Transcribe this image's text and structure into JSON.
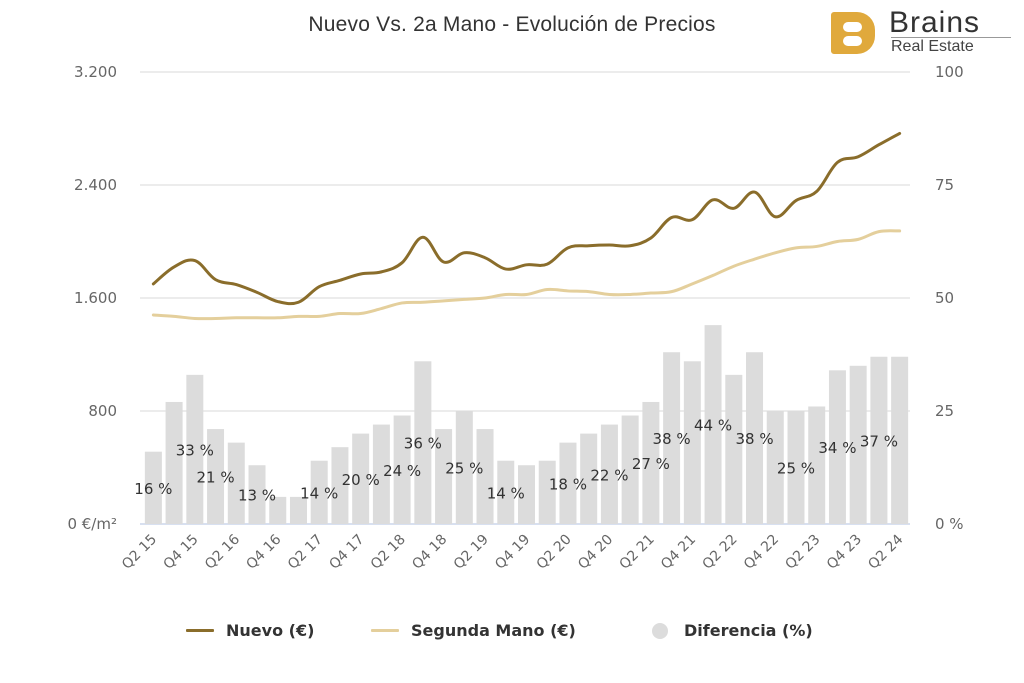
{
  "header": {
    "title": "Nuevo Vs. 2a Mano - Evolución de Precios",
    "logo": {
      "brand": "Brains",
      "subtitle": "Real Estate",
      "mark_letter": "B"
    }
  },
  "colors": {
    "nuevo": "#8a6d2b",
    "segunda": "#e4cf9c",
    "diferencia": "#dcdcdc",
    "grid": "#e6e6e6",
    "logo_accent": "#e0a93c"
  },
  "legend": {
    "items": [
      {
        "label": "Nuevo (€)",
        "icon": "line-swatch"
      },
      {
        "label": "Segunda Mano (€)",
        "icon": "line-swatch"
      },
      {
        "label": "Diferencia (%)",
        "icon": "circle-swatch"
      }
    ]
  },
  "chart_data": {
    "type": "line+bar",
    "title": "Nuevo Vs. 2a Mano - Evolución de Precios",
    "xlabel": "",
    "ylabel_left": "€/m²",
    "ylabel_right": "%",
    "y_left": {
      "range": [
        0,
        3200
      ],
      "ticks": [
        0,
        800,
        1600,
        2400,
        3200
      ],
      "tick_labels": [
        "0 €/m²",
        "800",
        "1.600",
        "2.400",
        "3.200"
      ]
    },
    "y_right": {
      "range": [
        0,
        100
      ],
      "ticks": [
        0,
        25,
        50,
        75,
        100
      ],
      "tick_labels": [
        "0 %",
        "25",
        "50",
        "75",
        "100"
      ]
    },
    "grid": true,
    "legend_position": "bottom",
    "x": [
      "Q2 15",
      "Q3 15",
      "Q4 15",
      "Q1 16",
      "Q2 16",
      "Q3 16",
      "Q4 16",
      "Q1 17",
      "Q2 17",
      "Q3 17",
      "Q4 17",
      "Q1 18",
      "Q2 18",
      "Q3 18",
      "Q4 18",
      "Q1 19",
      "Q2 19",
      "Q3 19",
      "Q4 19",
      "Q1 20",
      "Q2 20",
      "Q3 20",
      "Q4 20",
      "Q1 21",
      "Q2 21",
      "Q3 21",
      "Q4 21",
      "Q1 22",
      "Q2 22",
      "Q3 22",
      "Q4 22",
      "Q1 23",
      "Q2 23",
      "Q3 23",
      "Q4 23",
      "Q1 24",
      "Q2 24"
    ],
    "x_tick_labels": [
      "Q2 15",
      "Q4 15",
      "Q2 16",
      "Q4 16",
      "Q2 17",
      "Q4 17",
      "Q2 18",
      "Q4 18",
      "Q2 19",
      "Q4 19",
      "Q2 20",
      "Q4 20",
      "Q2 21",
      "Q4 21",
      "Q2 22",
      "Q4 22",
      "Q2 23",
      "Q4 23",
      "Q2 24"
    ],
    "series": [
      {
        "name": "Nuevo (€)",
        "type": "line",
        "axis": "left",
        "values": [
          1700,
          1820,
          1865,
          1730,
          1695,
          1640,
          1575,
          1570,
          1680,
          1725,
          1770,
          1785,
          1850,
          2030,
          1855,
          1920,
          1885,
          1805,
          1835,
          1840,
          1955,
          1970,
          1975,
          1970,
          2025,
          2170,
          2155,
          2295,
          2235,
          2350,
          2175,
          2290,
          2355,
          2560,
          2600,
          2685,
          2765
        ]
      },
      {
        "name": "Segunda Mano (€)",
        "type": "line",
        "axis": "left",
        "values": [
          1480,
          1470,
          1455,
          1455,
          1460,
          1460,
          1460,
          1470,
          1470,
          1490,
          1490,
          1525,
          1565,
          1570,
          1580,
          1590,
          1600,
          1625,
          1625,
          1660,
          1650,
          1645,
          1625,
          1625,
          1635,
          1645,
          1700,
          1760,
          1825,
          1875,
          1920,
          1955,
          1965,
          2000,
          2015,
          2070,
          2075
        ]
      },
      {
        "name": "Diferencia (%)",
        "type": "bar",
        "axis": "right",
        "values": [
          16,
          27,
          33,
          21,
          18,
          13,
          6,
          6,
          14,
          17,
          20,
          22,
          24,
          36,
          21,
          25,
          21,
          14,
          13,
          14,
          18,
          20,
          22,
          24,
          27,
          38,
          36,
          44,
          33,
          38,
          25,
          25,
          26,
          34,
          35,
          37,
          37
        ]
      }
    ],
    "data_labels": [
      {
        "index": 0,
        "text": "16 %"
      },
      {
        "index": 2,
        "text": "33 %"
      },
      {
        "index": 3,
        "text": "21 %"
      },
      {
        "index": 5,
        "text": "13 %"
      },
      {
        "index": 8,
        "text": "14 %"
      },
      {
        "index": 10,
        "text": "20 %"
      },
      {
        "index": 12,
        "text": "24 %"
      },
      {
        "index": 13,
        "text": "36 %"
      },
      {
        "index": 15,
        "text": "25 %"
      },
      {
        "index": 17,
        "text": "14 %"
      },
      {
        "index": 20,
        "text": "18 %"
      },
      {
        "index": 22,
        "text": "22 %"
      },
      {
        "index": 24,
        "text": "27 %"
      },
      {
        "index": 25,
        "text": "38 %"
      },
      {
        "index": 27,
        "text": "44 %"
      },
      {
        "index": 29,
        "text": "38 %"
      },
      {
        "index": 31,
        "text": "25 %"
      },
      {
        "index": 33,
        "text": "34 %"
      },
      {
        "index": 35,
        "text": "37 %"
      }
    ]
  }
}
